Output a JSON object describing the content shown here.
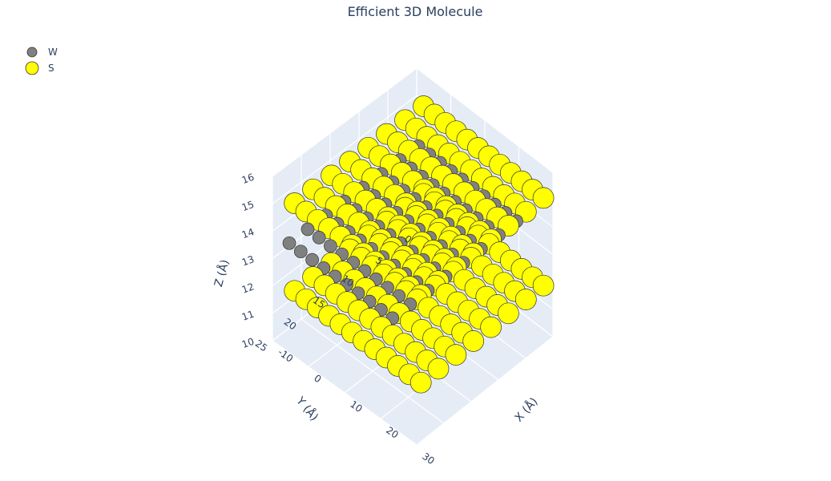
{
  "chart_data": {
    "type": "scatter3d",
    "title": "Efficient 3D Molecule",
    "legend": {
      "placement": "top-left"
    },
    "axes": {
      "x": {
        "label": "X (Å)",
        "range": [
          -10,
          30
        ],
        "ticks": [
          "-10",
          "0",
          "10",
          "20",
          "30"
        ]
      },
      "y": {
        "label": "Y (Å)",
        "range": [
          0,
          25
        ],
        "ticks": [
          "0",
          "5",
          "10",
          "15",
          "20",
          "25"
        ]
      },
      "z": {
        "label": "Z (Å)",
        "range": [
          10,
          16
        ],
        "ticks": [
          "10",
          "11",
          "12",
          "13",
          "14",
          "15",
          "16"
        ]
      }
    },
    "grid": true,
    "series": [
      {
        "name": "W",
        "color": "#808080",
        "marker_size": "small",
        "z_layers": [
          13.2
        ],
        "x_range": [
          -9.5,
          22
        ],
        "y_range": [
          0,
          24
        ],
        "spacing": 3.2
      },
      {
        "name": "S",
        "color": "#ffff00",
        "marker_size": "large",
        "z_layers": [
          11.6,
          14.8
        ],
        "x_range": [
          -8,
          28
        ],
        "y_range": [
          0,
          24
        ],
        "spacing": 3.2
      }
    ]
  }
}
